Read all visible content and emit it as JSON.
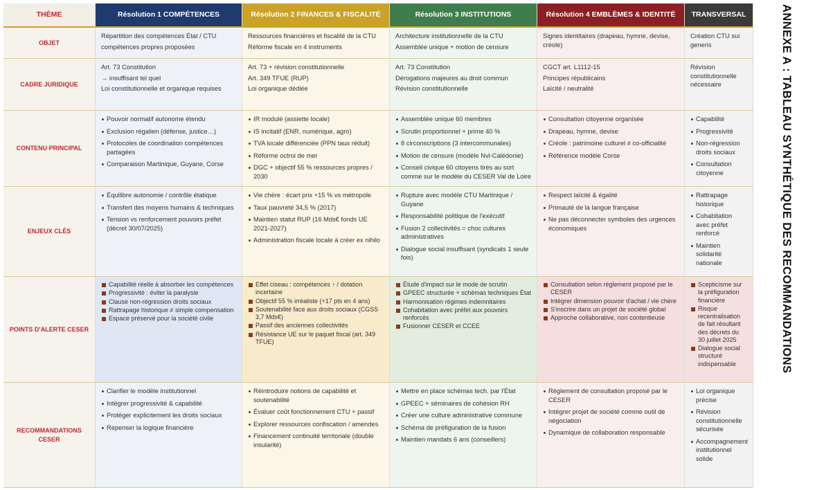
{
  "title": "ANNEXE A : TABLEAU SYNTHÉTIQUE DES RECOMMANDATIONS",
  "header": {
    "theme": "THÈME",
    "columns": [
      "Résolution 1 COMPÉTENCES",
      "Résolution 2 FINANCES & FISCALITÉ",
      "Résolution 3 INSTITUTIONS",
      "Résolution 4 EMBLÈMES & IDENTITÉ",
      "TRANSVERSAL"
    ]
  },
  "rows": [
    {
      "label": "OBJET",
      "cells": [
        [
          "Répartition des compétences État / CTU",
          "compétences propres proposées"
        ],
        [
          "Ressources financières et fiscalité de la CTU",
          "Réforme fiscale en 4 instruments"
        ],
        [
          "Architecture institutionnelle de la CTU",
          "Assemblée unique + motion de censure"
        ],
        [
          "Signes identitaires (drapeau, hymne, devise, créole)"
        ],
        [
          "Création CTU sui generis"
        ]
      ]
    },
    {
      "label": "CADRE JURIDIQUE",
      "cells": [
        [
          "Art. 73 Constitution",
          "→ insuffisant tel quel",
          "Loi constitutionnelle et organique requises"
        ],
        [
          "Art. 73 + révision constitutionnelle",
          "Art. 349 TFUE (RUP)",
          "Loi organique dédiée"
        ],
        [
          "Art. 73 Constitution",
          "Dérogations majeures au droit commun",
          "Révision constitutionnelle"
        ],
        [
          "CGCT art. L1112-15",
          "Principes républicains",
          "Laïcité / neutralité"
        ],
        [
          "Révision constitutionnelle nécessaire"
        ]
      ]
    },
    {
      "label": "CONTENU PRINCIPAL",
      "cells": [
        [
          "Pouvoir normatif autonome étendu",
          "Exclusion régalien (défense, justice…)",
          "Protocoles de coordination compétences partagées",
          "Comparaison Martinique, Guyane, Corse"
        ],
        [
          "IR modulé (assiette locale)",
          "IS incitatif (ENR, numérique, agro)",
          "TVA locale différenciée (PPN taux réduit)",
          "Réforme octroi de mer",
          "DGC + objectif 55 % ressources propres / 2030"
        ],
        [
          "Assemblée unique 60 membres",
          "Scrutin proportionnel + prime 40 %",
          "8 circonscriptions (3 intercommunales)",
          "Motion de censure (modèle Nvl-Calédonie)",
          "Conseil civique 60 citoyens tirés au sort comme sur le modèle du CESER Val de Loire"
        ],
        [
          "Consultation citoyenne organisée",
          "Drapeau, hymne, devise",
          "Créole : patrimoine culturel ≠ co-officialité",
          "Référence modèle Corse"
        ],
        [
          "Capabilité",
          "Progressivité",
          "Non-régression droits sociaux",
          "Consultation citoyenne"
        ]
      ]
    },
    {
      "label": "ENJEUX CLÉS",
      "cells": [
        [
          "Équilibre autonomie / contrôle étatique",
          "Transfert des moyens humains & techniques",
          "Tension vs renforcement pouvoirs préfet (décret 30/07/2025)"
        ],
        [
          "Vie chère : écart prix +15 % vs métropole",
          "Taux pauvreté 34,5 % (2017)",
          "Maintien statut RUP (16 Mds€ fonds UE 2021-2027)",
          "Administration fiscale locale à créer ex nihilo"
        ],
        [
          "Rupture avec modèle CTU Martinique / Guyane",
          "Responsabilité politique de l'exécutif",
          "Fusion 2 collectivités = choc cultures administratives",
          "Dialogue social insuffisant (syndicats 1 seule fois)"
        ],
        [
          "Respect laïcité & égalité",
          "Primauté de la langue française",
          "Ne pas déconnecter symboles des urgences économiques"
        ],
        [
          "Rattrapage historique",
          "Cohabitation avec préfet renforcé",
          "Maintien solidarité nationale"
        ]
      ]
    },
    {
      "label": "POINTS D'ALERTE CESER",
      "cells": [
        [
          "Capabilité réelle à absorber les compétences",
          "Progressivité : éviter la paralysie",
          "Clause non-régression droits sociaux",
          "Rattrapage historique ≠ simple compensation",
          "Espace préservé pour la société civile"
        ],
        [
          "Effet ciseau : compétences ↑ / dotation incertaine",
          "Objectif 55 % irréaliste (+17 pts en 4 ans)",
          "Soutenabilité face aux droits sociaux (CGSS 3,7 Mds€)",
          "Passif des anciennes collectivités",
          "Résistance UE sur le paquet fiscal (art. 349 TFUE)"
        ],
        [
          "Étude d'impact sur le mode de scrutin",
          "GPEEC structurée + schémas techniques État",
          "Harmonisation régimes indemnitaires",
          "Cohabitation avec préfet aux pouvoirs renforcés",
          "Fusionner CESER et CCEE"
        ],
        [
          "Consultation selon règlement proposé par le CESER",
          "Intégrer dimension pouvoir d'achat / vie chère",
          "S'inscrire dans un projet de société global",
          "Approche collaborative, non contentieuse"
        ],
        [
          "Scepticisme sur la préfiguration financière",
          "Risque recentralisation de fait résultant des décrets du 30 juillet 2025",
          "Dialogue social structuré indispensable"
        ]
      ]
    },
    {
      "label": "RECOMMANDATIONS CESER",
      "cells": [
        [
          "Clarifier le modèle institutionnel",
          "Intégrer progressivité & capabilité",
          "Protéger explicitement les droits sociaux",
          "Repenser la logique financière"
        ],
        [
          "Réintroduire notions de capabilité et soutenabilité",
          "Évaluer coût fonctionnement CTU + passif",
          "Explorer ressources confiscation / amendes",
          "Financement continuité territoriale (double insularité)"
        ],
        [
          "Mettre en place schémas tech. par l'État",
          "GPEEC + séminaires de cohésion RH",
          "Créer une culture administrative commune",
          "Schéma de préfiguration de la fusion",
          "Maintien mandats 6 ans (conseillers)"
        ],
        [
          "Règlement de consultation proposé par le CESER",
          "Intégrer projet de société comme outil de négociation",
          "Dynamique de collaboration responsable"
        ],
        [
          "Loi organique précise",
          "Révision constitutionnelle sécurisée",
          "Accompagnement institutionnel solide"
        ]
      ]
    }
  ]
}
